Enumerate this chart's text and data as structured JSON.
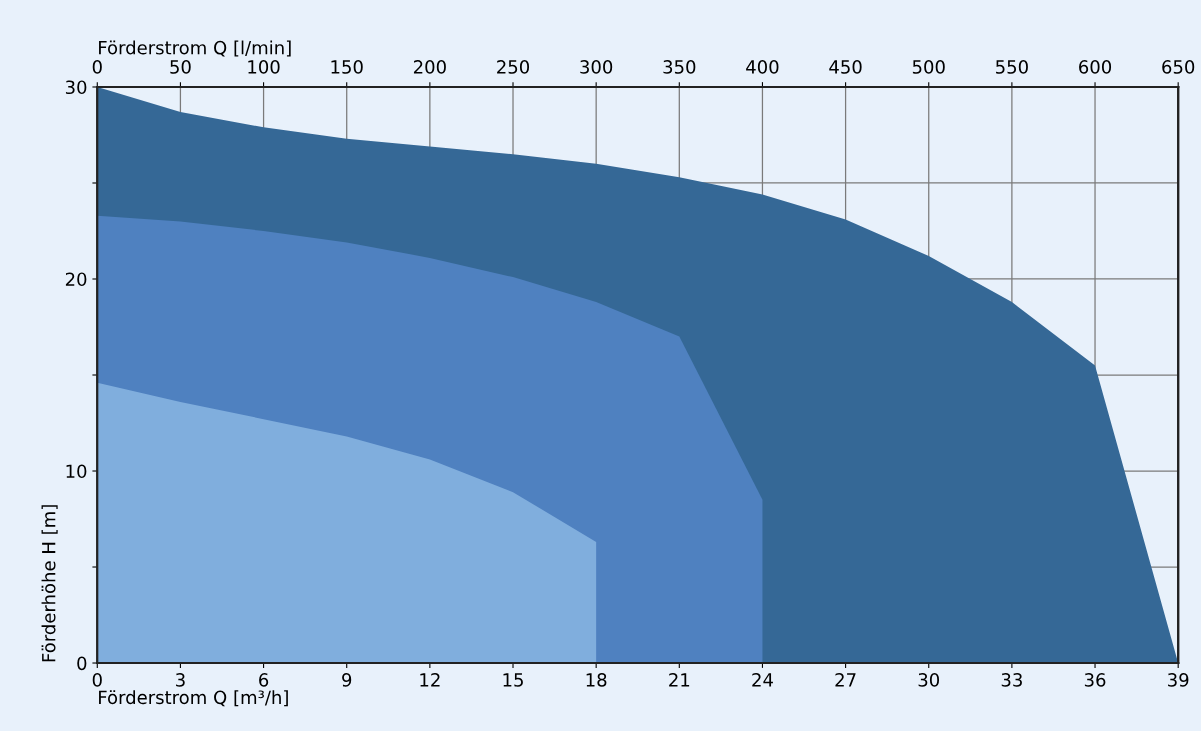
{
  "chart_data": {
    "type": "area",
    "xlabel": "Förderstrom Q [m³/h]",
    "ylabel": "Förderhöhe H [m]",
    "x2label": "Förderstrom Q [l/min]",
    "series": [
      {
        "color": "#356896",
        "x": [
          0,
          3,
          6,
          9,
          12,
          15,
          18,
          21,
          24,
          27,
          30,
          33,
          36,
          39
        ],
        "values": [
          30,
          28.7,
          27.9,
          27.3,
          26.9,
          26.5,
          26.0,
          25.3,
          24.4,
          23.1,
          21.2,
          18.8,
          15.5,
          0
        ]
      },
      {
        "color": "#4f81c0",
        "x": [
          0,
          3,
          6,
          9,
          12,
          15,
          18,
          21,
          24,
          24
        ],
        "values": [
          23.3,
          23.0,
          22.5,
          21.9,
          21.1,
          20.1,
          18.8,
          17.0,
          8.5,
          0
        ]
      },
      {
        "color": "#80aedd",
        "x": [
          0,
          3,
          6,
          9,
          12,
          15,
          18,
          18
        ],
        "values": [
          14.6,
          13.6,
          12.7,
          11.8,
          10.6,
          8.9,
          6.3,
          0
        ]
      }
    ],
    "xlim": [
      0,
      39
    ],
    "xticks": [
      0,
      3,
      6,
      9,
      12,
      15,
      18,
      21,
      24,
      27,
      30,
      33,
      36,
      39
    ],
    "x2lim": [
      0,
      650
    ],
    "x2ticks": [
      0,
      50,
      100,
      150,
      200,
      250,
      300,
      350,
      400,
      450,
      500,
      550,
      600,
      650
    ],
    "ylim": [
      0,
      30
    ],
    "yticks": [
      0,
      {
        "value": 5,
        "label": null
      },
      10,
      {
        "value": 15,
        "label": null
      },
      20,
      {
        "value": 25,
        "label": null
      },
      30
    ],
    "grid": true
  }
}
